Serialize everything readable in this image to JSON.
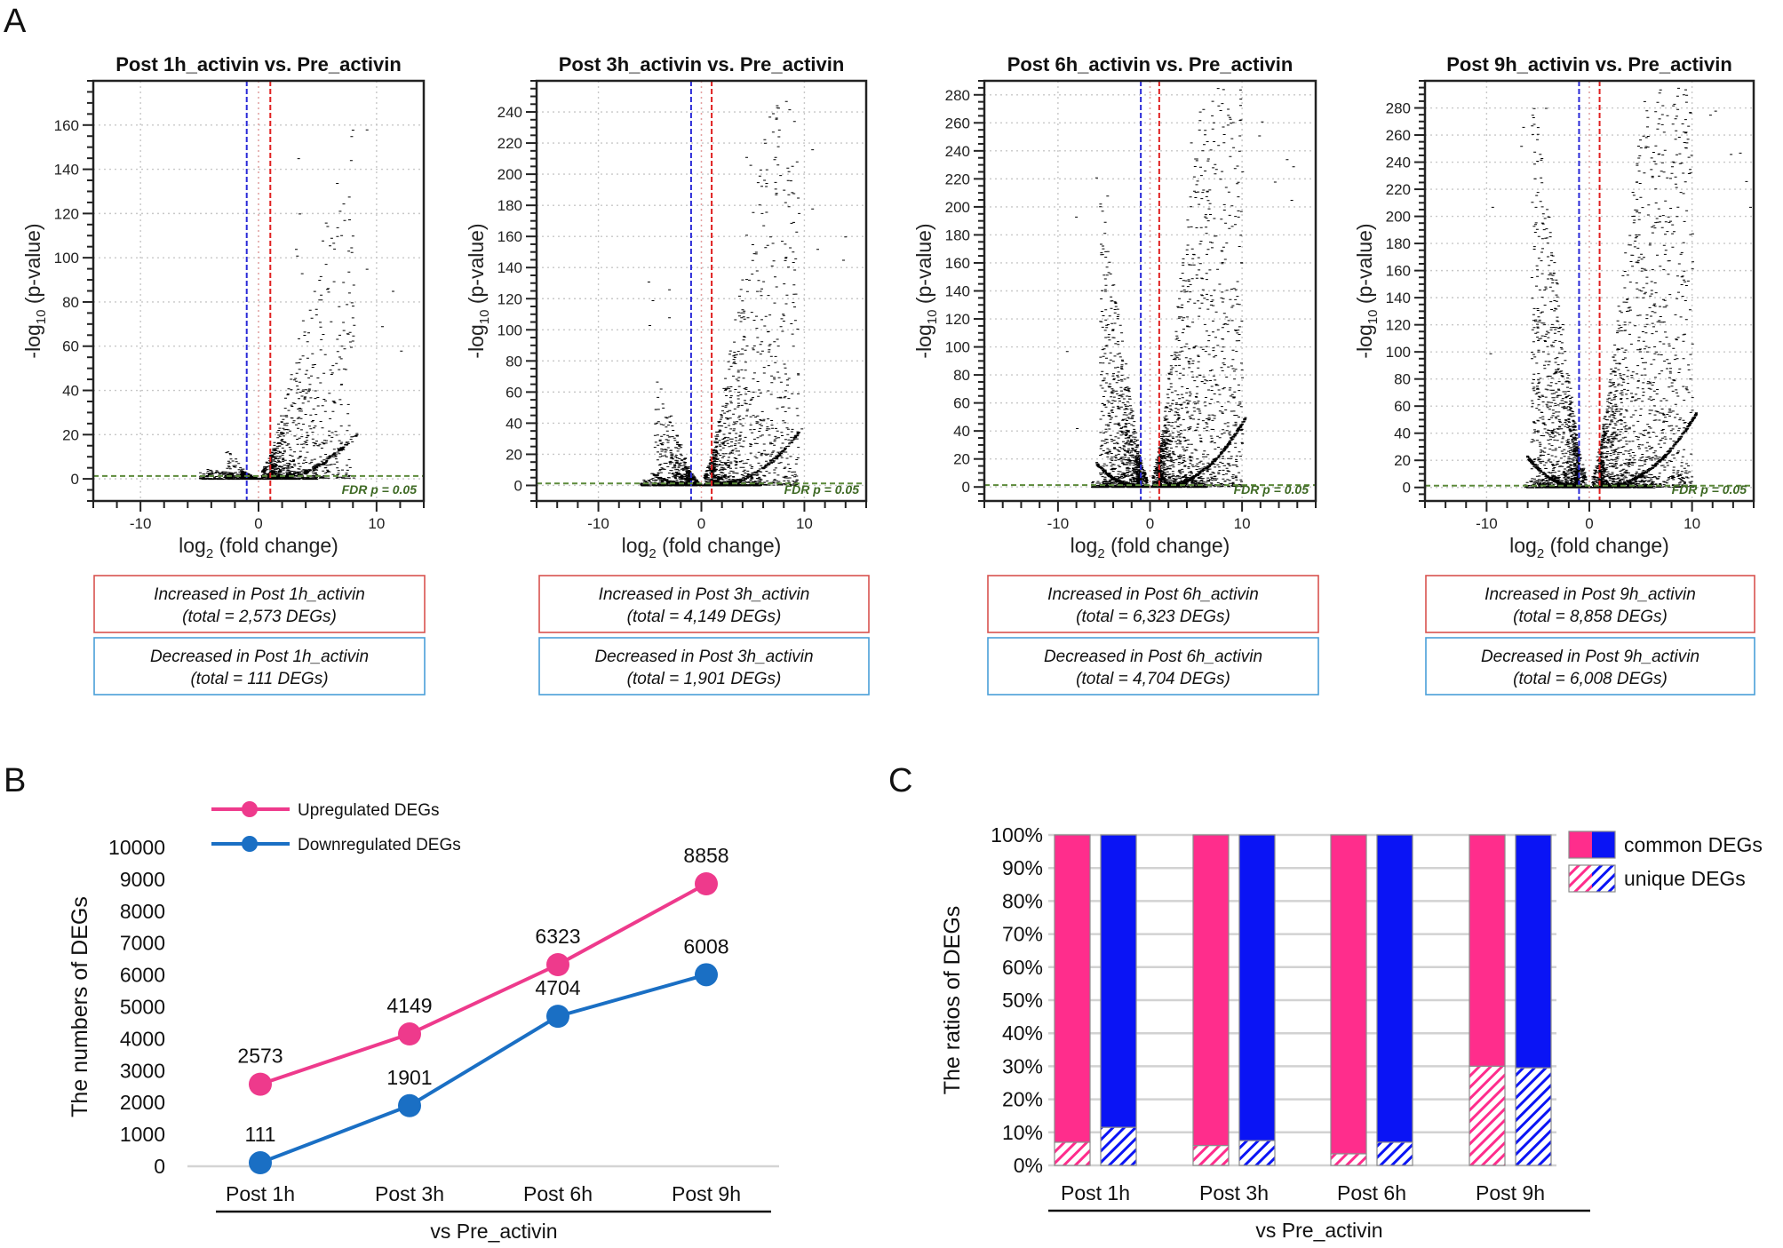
{
  "figure": {
    "panel_labels": {
      "a": "A",
      "b": "B",
      "c": "C"
    }
  },
  "chart_data": [
    {
      "id": "A1",
      "type": "scatter",
      "title": "Post 1h_activin vs. Pre_activin",
      "xlabel": "log2 (fold change)",
      "ylabel": "-log10 (p-value)",
      "xlim": [
        -14,
        14
      ],
      "ylim": [
        -10,
        180
      ],
      "xticks": [
        -10,
        0,
        10
      ],
      "yticks": [
        0,
        20,
        40,
        60,
        80,
        100,
        120,
        140,
        160
      ],
      "thresholds": {
        "down_log2fc": -1,
        "up_log2fc": 1,
        "fdr_neglog10p": 1.3
      },
      "fdr_label": "FDR p = 0.05",
      "grid": true,
      "annotation_up": {
        "line1": "Increased in Post 1h_activin",
        "line2": "(total = 2,573 DEGs)"
      },
      "annotation_down": {
        "line1": "Decreased in Post 1h_activin",
        "line2": "(total = 111 DEGs)"
      },
      "up_count": 2573,
      "down_count": 111,
      "cloud": {
        "up_spread": 5.5,
        "down_spread": 1.6,
        "up_height": 45,
        "down_height": 12
      },
      "outliers": [
        [
          9.2,
          158
        ],
        [
          3.4,
          145
        ],
        [
          3.5,
          120
        ],
        [
          7.3,
          117
        ],
        [
          6.2,
          109
        ],
        [
          3.2,
          104
        ],
        [
          3.3,
          101
        ],
        [
          9.2,
          95
        ],
        [
          3.7,
          93
        ],
        [
          7.2,
          89
        ],
        [
          11.4,
          85
        ],
        [
          10.5,
          69
        ],
        [
          12.1,
          58
        ],
        [
          8.0,
          73
        ],
        [
          7.5,
          79
        ]
      ]
    },
    {
      "id": "A2",
      "type": "scatter",
      "title": "Post 3h_activin vs. Pre_activin",
      "xlabel": "log2 (fold change)",
      "ylabel": "-log10 (p-value)",
      "xlim": [
        -16,
        16
      ],
      "ylim": [
        -10,
        260
      ],
      "xticks": [
        -10,
        0,
        10
      ],
      "yticks": [
        0,
        20,
        40,
        60,
        80,
        100,
        120,
        140,
        160,
        180,
        200,
        220,
        240
      ],
      "thresholds": {
        "down_log2fc": -1,
        "up_log2fc": 1,
        "fdr_neglog10p": 1.3
      },
      "fdr_label": "FDR p = 0.05",
      "grid": true,
      "annotation_up": {
        "line1": "Increased in Post 3h_activin",
        "line2": "(total = 4,149 DEGs)"
      },
      "annotation_down": {
        "line1": "Decreased in Post 3h_activin",
        "line2": "(total = 1,901 DEGs)"
      },
      "up_count": 4149,
      "down_count": 1901,
      "cloud": {
        "up_spread": 6.5,
        "down_spread": 3.2,
        "up_height": 80,
        "down_height": 35
      },
      "outliers": [
        [
          10.8,
          216
        ],
        [
          4.4,
          211
        ],
        [
          4.8,
          206
        ],
        [
          7.2,
          195
        ],
        [
          8.7,
          196
        ],
        [
          7.3,
          188
        ],
        [
          10.8,
          178
        ],
        [
          5.9,
          175
        ],
        [
          9.5,
          175
        ],
        [
          4.4,
          161
        ],
        [
          14.0,
          160
        ],
        [
          -5.1,
          131
        ],
        [
          -3.1,
          126
        ],
        [
          -4.7,
          119
        ],
        [
          -5.0,
          103
        ],
        [
          -3.1,
          108
        ],
        [
          13.8,
          145
        ],
        [
          11.3,
          152
        ]
      ]
    },
    {
      "id": "A3",
      "type": "scatter",
      "title": "Post 6h_activin vs. Pre_activin",
      "xlabel": "log2 (fold change)",
      "ylabel": "-log10 (p-value)",
      "xlim": [
        -18,
        18
      ],
      "ylim": [
        -10,
        290
      ],
      "xticks": [
        -10,
        0,
        10
      ],
      "yticks": [
        0,
        20,
        40,
        60,
        80,
        100,
        120,
        140,
        160,
        180,
        200,
        220,
        240,
        260,
        280
      ],
      "thresholds": {
        "down_log2fc": -1,
        "up_log2fc": 1,
        "fdr_neglog10p": 1.3
      },
      "fdr_label": "FDR p = 0.05",
      "grid": true,
      "annotation_up": {
        "line1": "Increased in Post 6h_activin",
        "line2": "(total = 6,323 DEGs)"
      },
      "annotation_down": {
        "line1": "Decreased in Post 6h_activin",
        "line2": "(total = 4,704 DEGs)"
      },
      "up_count": 6323,
      "down_count": 4704,
      "cloud": {
        "up_spread": 7,
        "down_spread": 4,
        "up_height": 110,
        "down_height": 80
      },
      "outliers": [
        [
          8.5,
          270
        ],
        [
          9.8,
          262
        ],
        [
          12.2,
          261
        ],
        [
          8.8,
          260
        ],
        [
          6.0,
          255
        ],
        [
          11.9,
          251
        ],
        [
          4.5,
          246
        ],
        [
          14.9,
          234
        ],
        [
          15.6,
          229
        ],
        [
          -5.8,
          221
        ],
        [
          -4.6,
          208
        ],
        [
          -8.0,
          193
        ],
        [
          -9.0,
          97
        ],
        [
          -7.9,
          42
        ],
        [
          13.6,
          218
        ],
        [
          15.4,
          205
        ]
      ]
    },
    {
      "id": "A4",
      "type": "scatter",
      "title": "Post 9h_activin vs. Pre_activin",
      "xlabel": "log2 (fold change)",
      "ylabel": "-log10 (p-value)",
      "xlim": [
        -16,
        16
      ],
      "ylim": [
        -10,
        300
      ],
      "xticks": [
        -10,
        0,
        10
      ],
      "yticks": [
        0,
        20,
        40,
        60,
        80,
        100,
        120,
        140,
        160,
        180,
        200,
        220,
        240,
        260,
        280
      ],
      "thresholds": {
        "down_log2fc": -1,
        "up_log2fc": 1,
        "fdr_neglog10p": 1.3
      },
      "fdr_label": "FDR p = 0.05",
      "grid": true,
      "annotation_up": {
        "line1": "Increased in Post 9h_activin",
        "line2": "(total = 8,858 DEGs)"
      },
      "annotation_down": {
        "line1": "Decreased in Post 9h_activin",
        "line2": "(total = 6,008 DEGs)"
      },
      "up_count": 8858,
      "down_count": 6008,
      "cloud": {
        "up_spread": 7,
        "down_spread": 4.2,
        "up_height": 120,
        "down_height": 110
      },
      "outliers": [
        [
          9.2,
          290
        ],
        [
          8.6,
          289
        ],
        [
          5.4,
          285
        ],
        [
          -4.2,
          280
        ],
        [
          12.3,
          278
        ],
        [
          11.8,
          275
        ],
        [
          -6.4,
          266
        ],
        [
          -6.6,
          252
        ],
        [
          -9.4,
          207
        ],
        [
          -9.6,
          99
        ],
        [
          15.3,
          226
        ],
        [
          15.7,
          207
        ],
        [
          14.7,
          247
        ],
        [
          13.8,
          246
        ]
      ]
    },
    {
      "id": "B",
      "type": "line",
      "title": "",
      "categories": [
        "Post 1h",
        "Post 3h",
        "Post 6h",
        "Post 9h"
      ],
      "group_label": "vs Pre_activin",
      "ylabel": "The numbers of DEGs",
      "ylim": [
        0,
        10000
      ],
      "yticks": [
        0,
        1000,
        2000,
        3000,
        4000,
        5000,
        6000,
        7000,
        8000,
        9000,
        10000
      ],
      "legend_position": "top-left",
      "series": [
        {
          "name": "Upregulated DEGs",
          "color": "#ee3a8c",
          "values": [
            2573,
            4149,
            6323,
            8858
          ]
        },
        {
          "name": "Downregulated DEGs",
          "color": "#1a6fc4",
          "values": [
            111,
            1901,
            4704,
            6008
          ]
        }
      ]
    },
    {
      "id": "C",
      "type": "bar",
      "stacked": true,
      "categories": [
        "Post 1h",
        "Post 3h",
        "Post 6h",
        "Post 9h"
      ],
      "group_label": "vs Pre_activin",
      "ylabel": "The ratios of DEGs",
      "ylim": [
        0,
        100
      ],
      "yticks": [
        0,
        10,
        20,
        30,
        40,
        50,
        60,
        70,
        80,
        90,
        100
      ],
      "ytick_suffix": "%",
      "grid": true,
      "legend_position": "right",
      "legend": [
        {
          "label": "common DEGs",
          "style": "solid"
        },
        {
          "label": "unique DEGs",
          "style": "hatched"
        }
      ],
      "series": [
        {
          "name": "Upregulated",
          "color": "#ff2d8c",
          "unique_pct": [
            7,
            6,
            3.5,
            30
          ],
          "common_pct": [
            93,
            94,
            96.5,
            70
          ]
        },
        {
          "name": "Downregulated",
          "color": "#0a14f5",
          "unique_pct": [
            11.5,
            7.5,
            7,
            29.5
          ],
          "common_pct": [
            88.5,
            92.5,
            93,
            70.5
          ]
        }
      ]
    }
  ]
}
